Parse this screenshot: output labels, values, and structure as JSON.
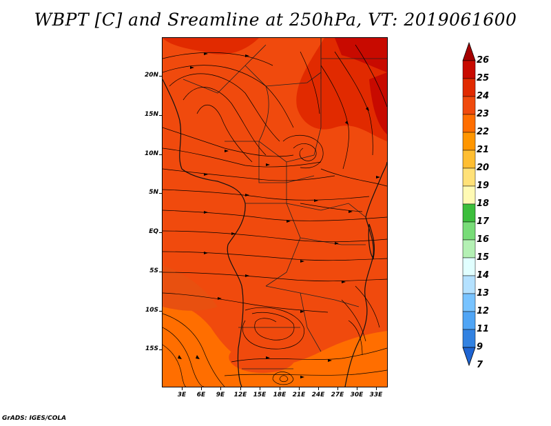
{
  "title": "WBPT [C] and Sreamline at 250hPa, VT: 2019061600",
  "credit": "GrADS: IGES/COLA",
  "lat_labels": [
    "20N",
    "15N",
    "10N",
    "5N",
    "EQ",
    "5S",
    "10S",
    "15S"
  ],
  "lon_labels": [
    "3E",
    "6E",
    "9E",
    "12E",
    "15E",
    "18E",
    "21E",
    "24E",
    "27E",
    "30E",
    "33E"
  ],
  "colorbar": {
    "labels": [
      "26",
      "25",
      "24",
      "23",
      "22",
      "21",
      "20",
      "19",
      "18",
      "17",
      "16",
      "15",
      "14",
      "13",
      "12",
      "11",
      "9",
      "7"
    ],
    "colors": [
      "#a50000",
      "#c80a00",
      "#e12a00",
      "#f04a0d",
      "#ff6e00",
      "#ff9600",
      "#ffbe32",
      "#ffe178",
      "#fffab4",
      "#3cbe3c",
      "#78dc78",
      "#b4f0b4",
      "#e1ffff",
      "#b4e1ff",
      "#78c3ff",
      "#50a5f5",
      "#3282e1",
      "#1e64d2"
    ]
  }
}
